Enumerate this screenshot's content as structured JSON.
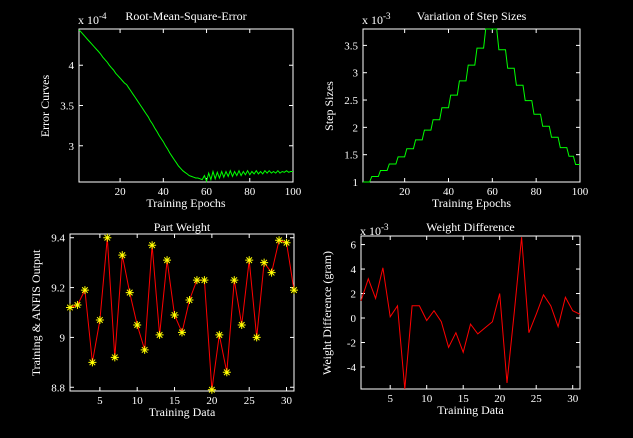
{
  "figure": {
    "background": "#000000",
    "axis_color": "#ffffff",
    "accent_green": "#00ff00",
    "accent_red": "#ff0000",
    "accent_yellow": "#ffff00"
  },
  "chart_data": [
    {
      "id": "rmse",
      "type": "line",
      "title": "Root-Mean-Square-Error",
      "exponent_base": "x 10",
      "exponent_power": "-4",
      "xlabel": "Training Epochs",
      "ylabel": "Error Curves",
      "xlim": [
        1,
        100
      ],
      "ylim": [
        2.55,
        4.45
      ],
      "xticks": [
        20,
        40,
        60,
        80,
        100
      ],
      "xtick_labels": [
        "20",
        "40",
        "60",
        "80",
        "100"
      ],
      "yticks": [
        3,
        3.5,
        4
      ],
      "ytick_labels": [
        "3",
        "3.5",
        "4"
      ],
      "grid": false,
      "series": [
        {
          "name": "training-error-curve",
          "color": "#00ff00",
          "marker": null,
          "y": [
            4.44,
            4.41,
            4.38,
            4.35,
            4.32,
            4.29,
            4.26,
            4.23,
            4.2,
            4.17,
            4.14,
            4.1,
            4.07,
            4.04,
            4.0,
            3.97,
            3.94,
            3.9,
            3.87,
            3.84,
            3.81,
            3.78,
            3.76,
            3.72,
            3.68,
            3.64,
            3.6,
            3.56,
            3.52,
            3.48,
            3.44,
            3.4,
            3.36,
            3.31,
            3.27,
            3.22,
            3.18,
            3.13,
            3.09,
            3.05,
            3.0,
            2.96,
            2.91,
            2.87,
            2.83,
            2.79,
            2.75,
            2.72,
            2.69,
            2.67,
            2.65,
            2.63,
            2.62,
            2.61,
            2.6,
            2.6,
            2.59,
            2.58,
            2.63,
            2.56,
            2.66,
            2.58,
            2.68,
            2.59,
            2.67,
            2.6,
            2.68,
            2.61,
            2.68,
            2.62,
            2.69,
            2.62,
            2.68,
            2.63,
            2.69,
            2.63,
            2.68,
            2.64,
            2.69,
            2.64,
            2.68,
            2.65,
            2.69,
            2.65,
            2.68,
            2.65,
            2.69,
            2.66,
            2.69,
            2.66,
            2.68,
            2.66,
            2.69,
            2.66,
            2.68,
            2.67,
            2.69,
            2.67,
            2.68,
            2.68
          ]
        }
      ]
    },
    {
      "id": "step-sizes",
      "type": "line",
      "title": "Variation of Step Sizes",
      "exponent_base": "x 10",
      "exponent_power": "-3",
      "xlabel": "Training Epochs",
      "ylabel": "Step Sizes",
      "xlim": [
        1,
        100
      ],
      "ylim": [
        1.0,
        3.8
      ],
      "xticks": [
        20,
        40,
        60,
        80,
        100
      ],
      "xtick_labels": [
        "20",
        "40",
        "60",
        "80",
        "100"
      ],
      "yticks": [
        1,
        1.5,
        2,
        2.5,
        3,
        3.5
      ],
      "ytick_labels": [
        "1",
        "1.5",
        "2",
        "2.5",
        "3",
        "3.5"
      ],
      "grid": false,
      "series": [
        {
          "name": "step-size-curve",
          "color": "#00ff00",
          "marker": null,
          "y": [
            1.0,
            1.0,
            1.0,
            1.0,
            1.1,
            1.1,
            1.1,
            1.1,
            1.21,
            1.21,
            1.21,
            1.21,
            1.33,
            1.33,
            1.33,
            1.33,
            1.46,
            1.46,
            1.46,
            1.46,
            1.61,
            1.61,
            1.61,
            1.61,
            1.77,
            1.77,
            1.77,
            1.77,
            1.95,
            1.95,
            1.95,
            1.95,
            2.14,
            2.14,
            2.14,
            2.14,
            2.36,
            2.36,
            2.36,
            2.36,
            2.59,
            2.59,
            2.59,
            2.59,
            2.85,
            2.85,
            2.85,
            2.85,
            3.14,
            3.14,
            3.14,
            3.14,
            3.45,
            3.45,
            3.45,
            3.45,
            3.8,
            3.8,
            3.8,
            3.8,
            3.8,
            3.8,
            3.42,
            3.42,
            3.42,
            3.42,
            3.08,
            3.08,
            3.08,
            3.08,
            2.77,
            2.77,
            2.77,
            2.77,
            2.49,
            2.49,
            2.49,
            2.49,
            2.24,
            2.24,
            2.24,
            2.24,
            2.02,
            2.02,
            2.02,
            2.02,
            1.82,
            1.82,
            1.82,
            1.82,
            1.63,
            1.63,
            1.63,
            1.63,
            1.47,
            1.47,
            1.47,
            1.32,
            1.32,
            1.32
          ]
        }
      ]
    },
    {
      "id": "part-weight",
      "type": "line",
      "title": "Part Weight",
      "exponent_base": "",
      "exponent_power": "",
      "xlabel": "Training Data",
      "ylabel": "Training & ANFIS Output",
      "xlim": [
        1,
        31
      ],
      "ylim": [
        8.785,
        9.415
      ],
      "xticks": [
        5,
        10,
        15,
        20,
        25,
        30
      ],
      "xtick_labels": [
        "5",
        "10",
        "15",
        "20",
        "25",
        "30"
      ],
      "yticks": [
        8.8,
        9,
        9.2,
        9.4
      ],
      "ytick_labels": [
        "8.8",
        "9",
        "9.2",
        "9.4"
      ],
      "grid": false,
      "series": [
        {
          "name": "training-and-anfis-output",
          "color": "#ff0000",
          "marker": "*",
          "marker_color": "#ffff00",
          "y": [
            9.12,
            9.13,
            9.19,
            8.9,
            9.07,
            9.4,
            8.92,
            9.33,
            9.18,
            9.05,
            8.95,
            9.37,
            9.01,
            9.31,
            9.09,
            9.02,
            9.15,
            9.23,
            9.23,
            8.79,
            9.01,
            8.86,
            9.23,
            9.05,
            9.31,
            9.0,
            9.3,
            9.26,
            9.39,
            9.38,
            9.19
          ]
        }
      ]
    },
    {
      "id": "weight-difference",
      "type": "line",
      "title": "Weight Difference",
      "exponent_base": "x 10",
      "exponent_power": "-3",
      "xlabel": "Training Data",
      "ylabel": "Weight Difference (gram)",
      "xlim": [
        1,
        31
      ],
      "ylim": [
        -5.8,
        6.7
      ],
      "xticks": [
        5,
        10,
        15,
        20,
        25,
        30
      ],
      "xtick_labels": [
        "5",
        "10",
        "15",
        "20",
        "25",
        "30"
      ],
      "yticks": [
        -4,
        -2,
        0,
        2,
        4,
        6
      ],
      "ytick_labels": [
        "-4",
        "-2",
        "0",
        "2",
        "4",
        "6"
      ],
      "grid": false,
      "series": [
        {
          "name": "weight-difference-curve",
          "color": "#ff0000",
          "marker": null,
          "y": [
            1.4,
            3.2,
            1.6,
            4.1,
            0.1,
            1.0,
            -5.8,
            1.0,
            1.0,
            -0.2,
            0.6,
            -0.3,
            -2.4,
            -1.2,
            -2.8,
            -0.5,
            -1.3,
            -0.8,
            -0.3,
            2.0,
            -5.3,
            0.5,
            6.6,
            -1.2,
            0.3,
            1.9,
            1.0,
            -0.7,
            1.7,
            0.6,
            0.3
          ]
        }
      ]
    }
  ]
}
